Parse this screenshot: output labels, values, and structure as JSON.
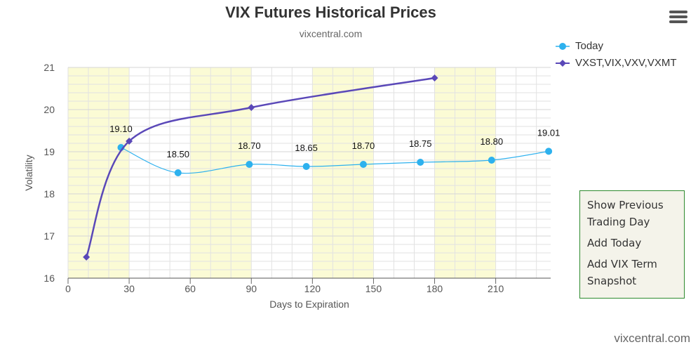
{
  "chart_data": {
    "type": "line",
    "title": "VIX Futures Historical Prices",
    "subtitle": "vixcentral.com",
    "xlabel": "Days to Expiration",
    "ylabel": "Volatility",
    "xlim": [
      0,
      237
    ],
    "ylim": [
      16,
      21
    ],
    "x_ticks": [
      "0",
      "30",
      "60",
      "90",
      "120",
      "150",
      "180",
      "210"
    ],
    "y_ticks": [
      "16",
      "17",
      "18",
      "19",
      "20",
      "21"
    ],
    "shaded_bands": [
      [
        0,
        30
      ],
      [
        60,
        90
      ],
      [
        120,
        150
      ],
      [
        180,
        210
      ]
    ],
    "grid": true,
    "legend_position": "top-right",
    "series": [
      {
        "name": "Today",
        "color": "#2db1ee",
        "marker": "circle",
        "points": [
          {
            "x": 26,
            "y": 19.1,
            "label": "19.10"
          },
          {
            "x": 54,
            "y": 18.5,
            "label": "18.50"
          },
          {
            "x": 89,
            "y": 18.7,
            "label": "18.70"
          },
          {
            "x": 117,
            "y": 18.65,
            "label": "18.65"
          },
          {
            "x": 145,
            "y": 18.7,
            "label": "18.70"
          },
          {
            "x": 173,
            "y": 18.75,
            "label": "18.75"
          },
          {
            "x": 208,
            "y": 18.8,
            "label": "18.80"
          },
          {
            "x": 236,
            "y": 19.01,
            "label": "19.01"
          }
        ]
      },
      {
        "name": "VXST,VIX,VXV,VXMT",
        "color": "#5a48b8",
        "marker": "diamond",
        "points": [
          {
            "x": 9,
            "y": 16.5
          },
          {
            "x": 30,
            "y": 19.25
          },
          {
            "x": 90,
            "y": 20.05
          },
          {
            "x": 180,
            "y": 20.75
          }
        ]
      }
    ]
  },
  "context_menu": {
    "items": [
      "Show Previous Trading Day",
      "Add Today",
      "Add VIX Term Snapshot"
    ]
  },
  "watermark": "vixcentral.com",
  "colors": {
    "band": "#fbfbd5",
    "grid": "#e2e2e2",
    "menu_border": "#2e8b2e",
    "menu_bg": "#f4f3ea"
  }
}
